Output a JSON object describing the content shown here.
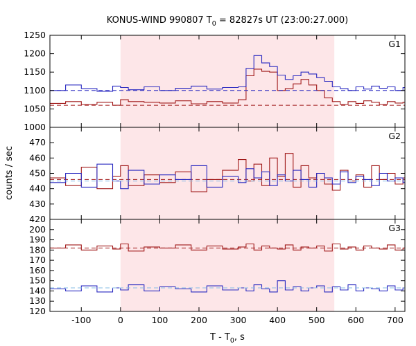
{
  "title": {
    "prefix": "KONUS-WIND 990807 T",
    "sub": "0",
    "suffix": " = 82827s UT (23:00:27.000)"
  },
  "xlabel": {
    "prefix": "T - T",
    "sub": "0",
    "suffix": ", s"
  },
  "ylabel": "counts / sec",
  "colors": {
    "red": "#a01818",
    "blue": "#2828c0",
    "light_blue": "#86bce6",
    "shade": "#fde6e8",
    "axes": "#000000"
  },
  "chart_data": {
    "type": "line",
    "xlim": [
      -180,
      725
    ],
    "xticks": [
      -100,
      0,
      100,
      200,
      300,
      400,
      500,
      600,
      700
    ],
    "shaded_interval": [
      0,
      545
    ],
    "panels": [
      {
        "label": "G1",
        "ylim": [
          1000,
          1250
        ],
        "yticks": [
          1000,
          1050,
          1100,
          1150,
          1200,
          1250
        ],
        "series": [
          {
            "color": "red",
            "x": [
              -180,
              -140,
              -100,
              -60,
              -20,
              0,
              20,
              60,
              100,
              140,
              180,
              220,
              260,
              300,
              320,
              340,
              360,
              380,
              400,
              420,
              440,
              460,
              480,
              500,
              520,
              540,
              560,
              580,
              600,
              620,
              640,
              660,
              680,
              700,
              720
            ],
            "y": [
              1065,
              1070,
              1062,
              1068,
              1060,
              1075,
              1070,
              1068,
              1066,
              1072,
              1064,
              1070,
              1066,
              1075,
              1140,
              1158,
              1152,
              1150,
              1100,
              1105,
              1118,
              1130,
              1115,
              1100,
              1080,
              1070,
              1062,
              1070,
              1065,
              1072,
              1068,
              1062,
              1070,
              1066,
              1068
            ],
            "background_level": 1060
          },
          {
            "color": "blue",
            "x": [
              -180,
              -140,
              -100,
              -60,
              -20,
              0,
              20,
              60,
              100,
              140,
              180,
              220,
              260,
              300,
              320,
              340,
              360,
              380,
              400,
              420,
              440,
              460,
              480,
              500,
              520,
              540,
              560,
              580,
              600,
              620,
              640,
              660,
              680,
              700,
              720
            ],
            "y": [
              1100,
              1115,
              1105,
              1098,
              1112,
              1108,
              1102,
              1110,
              1100,
              1106,
              1112,
              1104,
              1108,
              1110,
              1160,
              1195,
              1175,
              1165,
              1142,
              1130,
              1140,
              1150,
              1145,
              1135,
              1125,
              1110,
              1105,
              1100,
              1110,
              1104,
              1112,
              1106,
              1110,
              1100,
              1108
            ],
            "background_level": 1100
          }
        ]
      },
      {
        "label": "G2",
        "ylim": [
          420,
          480
        ],
        "yticks": [
          420,
          430,
          440,
          450,
          460,
          470
        ],
        "series": [
          {
            "color": "red",
            "x": [
              -180,
              -140,
              -100,
              -60,
              -20,
              0,
              20,
              60,
              100,
              140,
              180,
              220,
              260,
              300,
              320,
              340,
              360,
              380,
              400,
              420,
              440,
              460,
              480,
              500,
              520,
              540,
              560,
              580,
              600,
              620,
              640,
              660,
              680,
              700,
              720
            ],
            "y": [
              447,
              442,
              454,
              440,
              448,
              455,
              442,
              449,
              444,
              451,
              438,
              446,
              452,
              459,
              445,
              456,
              442,
              460,
              448,
              463,
              441,
              455,
              447,
              450,
              443,
              439,
              452,
              445,
              449,
              441,
              455,
              446,
              450,
              443,
              447
            ],
            "background_level": 446
          },
          {
            "color": "blue",
            "x": [
              -180,
              -140,
              -100,
              -60,
              -20,
              0,
              20,
              60,
              100,
              140,
              180,
              220,
              260,
              300,
              320,
              340,
              360,
              380,
              400,
              420,
              440,
              460,
              480,
              500,
              520,
              540,
              560,
              580,
              600,
              620,
              640,
              660,
              680,
              700,
              720
            ],
            "y": [
              444,
              450,
              441,
              456,
              445,
              440,
              452,
              443,
              449,
              446,
              455,
              441,
              448,
              444,
              453,
              447,
              451,
              442,
              449,
              445,
              452,
              446,
              441,
              450,
              447,
              443,
              451,
              444,
              448,
              446,
              442,
              450,
              445,
              447,
              444
            ],
            "background_level": 445
          }
        ]
      },
      {
        "label": "G3",
        "ylim": [
          120,
          210
        ],
        "yticks": [
          120,
          130,
          140,
          150,
          160,
          170,
          180,
          190,
          200
        ],
        "series": [
          {
            "color": "red",
            "x": [
              -180,
              -140,
              -100,
              -60,
              -20,
              0,
              20,
              60,
              100,
              140,
              180,
              220,
              260,
              300,
              320,
              340,
              360,
              380,
              400,
              420,
              440,
              460,
              480,
              500,
              520,
              540,
              560,
              580,
              600,
              620,
              640,
              660,
              680,
              700,
              720
            ],
            "y": [
              182,
              185,
              180,
              184,
              181,
              186,
              179,
              183,
              182,
              185,
              180,
              184,
              181,
              183,
              186,
              180,
              184,
              182,
              181,
              185,
              180,
              183,
              182,
              184,
              179,
              186,
              181,
              183,
              180,
              184,
              182,
              181,
              185,
              180,
              182
            ],
            "background_level": 182
          },
          {
            "color": "blue",
            "x": [
              -180,
              -140,
              -100,
              -60,
              -20,
              0,
              20,
              60,
              100,
              140,
              180,
              220,
              260,
              300,
              320,
              340,
              360,
              380,
              400,
              420,
              440,
              460,
              480,
              500,
              520,
              540,
              560,
              580,
              600,
              620,
              640,
              660,
              680,
              700,
              720
            ],
            "y": [
              142,
              140,
              145,
              139,
              143,
              141,
              146,
              140,
              144,
              142,
              139,
              145,
              141,
              143,
              140,
              146,
              142,
              139,
              150,
              141,
              144,
              140,
              143,
              145,
              139,
              144,
              141,
              146,
              140,
              143,
              142,
              140,
              145,
              141,
              143
            ],
            "background_level": 143
          }
        ]
      }
    ]
  }
}
